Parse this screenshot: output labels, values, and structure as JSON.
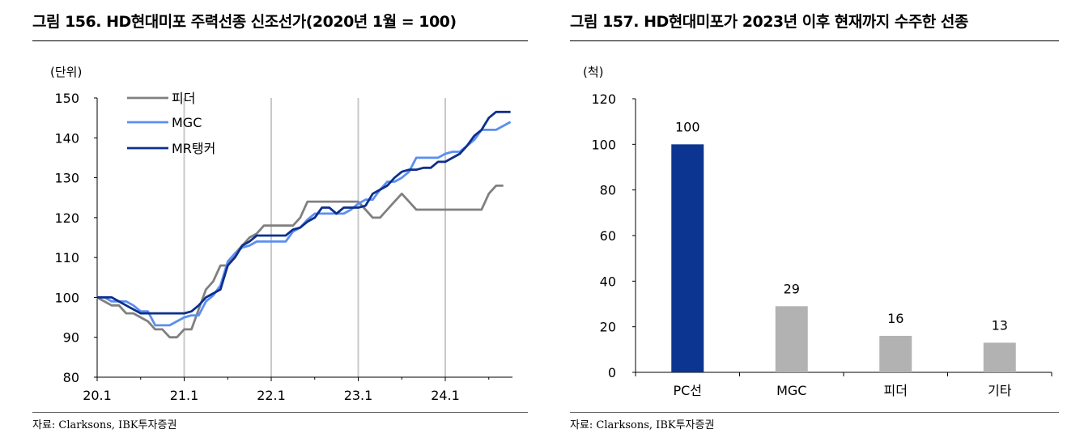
{
  "left": {
    "title": "그림 156. HD현대미포 주력선종 신조선가(2020년 1월 = 100)",
    "unit": "(단위)",
    "source": "자료: Clarksons, IBK투자증권"
  },
  "right": {
    "title": "그림 157. HD현대미포가 2023년 이후 현재까지 수주한 선종",
    "unit": "(척)",
    "source": "자료: Clarksons, IBK투자증권"
  },
  "colors": {
    "feeder": "#808080",
    "mgc": "#5b8ff0",
    "mr_tanker": "#0d2f8c",
    "bar_highlight": "#0b3590",
    "bar_gray": "#b2b2b2",
    "grid_vertical": "#c8c8c8"
  },
  "chart_data": [
    {
      "type": "line",
      "ylim": [
        80,
        150
      ],
      "yticks": [
        80,
        90,
        100,
        110,
        120,
        130,
        140,
        150
      ],
      "xticks": [
        "20.1",
        "21.1",
        "22.1",
        "23.1",
        "24.1"
      ],
      "x_unit": "month index from 20.1",
      "xlim": [
        0,
        57
      ],
      "legend_position": "top-left",
      "vertical_grid": true,
      "series": [
        {
          "name": "피더",
          "color": "#808080",
          "points": [
            [
              0,
              100
            ],
            [
              1,
              99
            ],
            [
              2,
              98
            ],
            [
              3,
              98
            ],
            [
              4,
              96
            ],
            [
              5,
              96
            ],
            [
              6,
              95
            ],
            [
              7,
              94
            ],
            [
              8,
              92
            ],
            [
              9,
              92
            ],
            [
              10,
              90
            ],
            [
              11,
              90
            ],
            [
              12,
              92
            ],
            [
              13,
              92
            ],
            [
              14,
              97
            ],
            [
              15,
              102
            ],
            [
              16,
              104
            ],
            [
              17,
              108
            ],
            [
              18,
              108
            ],
            [
              19,
              111
            ],
            [
              20,
              113
            ],
            [
              21,
              115
            ],
            [
              22,
              116
            ],
            [
              23,
              118
            ],
            [
              24,
              118
            ],
            [
              25,
              118
            ],
            [
              26,
              118
            ],
            [
              27,
              118
            ],
            [
              28,
              120
            ],
            [
              29,
              124
            ],
            [
              30,
              124
            ],
            [
              31,
              124
            ],
            [
              32,
              124
            ],
            [
              33,
              124
            ],
            [
              34,
              124
            ],
            [
              35,
              124
            ],
            [
              36,
              124
            ],
            [
              37,
              122
            ],
            [
              38,
              120
            ],
            [
              39,
              120
            ],
            [
              40,
              122
            ],
            [
              41,
              124
            ],
            [
              42,
              126
            ],
            [
              43,
              124
            ],
            [
              44,
              122
            ],
            [
              45,
              122
            ],
            [
              46,
              122
            ],
            [
              47,
              122
            ],
            [
              48,
              122
            ],
            [
              49,
              122
            ],
            [
              50,
              122
            ],
            [
              51,
              122
            ],
            [
              52,
              122
            ],
            [
              53,
              122
            ],
            [
              54,
              126
            ],
            [
              55,
              128
            ],
            [
              56,
              128
            ]
          ]
        },
        {
          "name": "MGC",
          "color": "#5b8ff0",
          "points": [
            [
              0,
              100
            ],
            [
              1,
              100
            ],
            [
              2,
              99
            ],
            [
              3,
              99
            ],
            [
              4,
              99
            ],
            [
              5,
              98
            ],
            [
              6,
              96.5
            ],
            [
              7,
              96.5
            ],
            [
              8,
              93
            ],
            [
              9,
              93
            ],
            [
              10,
              93
            ],
            [
              11,
              94
            ],
            [
              12,
              95
            ],
            [
              13,
              95.5
            ],
            [
              14,
              95.5
            ],
            [
              15,
              99
            ],
            [
              16,
              100.5
            ],
            [
              17,
              103
            ],
            [
              18,
              109
            ],
            [
              19,
              111
            ],
            [
              20,
              112.5
            ],
            [
              21,
              113
            ],
            [
              22,
              114
            ],
            [
              23,
              114
            ],
            [
              24,
              114
            ],
            [
              25,
              114
            ],
            [
              26,
              114
            ],
            [
              27,
              116.5
            ],
            [
              28,
              117.5
            ],
            [
              29,
              119.5
            ],
            [
              30,
              121
            ],
            [
              31,
              121
            ],
            [
              32,
              121
            ],
            [
              33,
              121
            ],
            [
              34,
              121
            ],
            [
              35,
              122
            ],
            [
              36,
              123.5
            ],
            [
              37,
              124.5
            ],
            [
              38,
              124.5
            ],
            [
              39,
              127
            ],
            [
              40,
              129
            ],
            [
              41,
              129
            ],
            [
              42,
              130
            ],
            [
              43,
              131.5
            ],
            [
              44,
              135
            ],
            [
              45,
              135
            ],
            [
              46,
              135
            ],
            [
              47,
              135
            ],
            [
              48,
              136
            ],
            [
              49,
              136.5
            ],
            [
              50,
              136.5
            ],
            [
              51,
              138
            ],
            [
              52,
              139.5
            ],
            [
              53,
              142
            ],
            [
              54,
              142
            ],
            [
              55,
              142
            ],
            [
              56,
              143
            ],
            [
              57,
              144
            ]
          ]
        },
        {
          "name": "MR탱커",
          "color": "#0d2f8c",
          "points": [
            [
              0,
              100
            ],
            [
              1,
              100
            ],
            [
              2,
              100
            ],
            [
              3,
              99
            ],
            [
              4,
              98
            ],
            [
              5,
              97
            ],
            [
              6,
              96
            ],
            [
              7,
              96
            ],
            [
              8,
              96
            ],
            [
              9,
              96
            ],
            [
              10,
              96
            ],
            [
              11,
              96
            ],
            [
              12,
              96
            ],
            [
              13,
              96.5
            ],
            [
              14,
              98
            ],
            [
              15,
              100
            ],
            [
              16,
              101
            ],
            [
              17,
              102
            ],
            [
              18,
              108
            ],
            [
              19,
              110
            ],
            [
              20,
              113
            ],
            [
              21,
              114
            ],
            [
              22,
              115.5
            ],
            [
              23,
              115.5
            ],
            [
              24,
              115.5
            ],
            [
              25,
              115.5
            ],
            [
              26,
              115.5
            ],
            [
              27,
              117
            ],
            [
              28,
              117.5
            ],
            [
              29,
              119
            ],
            [
              30,
              120
            ],
            [
              31,
              122.5
            ],
            [
              32,
              122.5
            ],
            [
              33,
              121
            ],
            [
              34,
              122.5
            ],
            [
              35,
              122.5
            ],
            [
              36,
              122.5
            ],
            [
              37,
              123
            ],
            [
              38,
              126
            ],
            [
              39,
              127
            ],
            [
              40,
              128
            ],
            [
              41,
              130
            ],
            [
              42,
              131.5
            ],
            [
              43,
              132
            ],
            [
              44,
              132
            ],
            [
              45,
              132.5
            ],
            [
              46,
              132.5
            ],
            [
              47,
              134
            ],
            [
              48,
              134
            ],
            [
              49,
              135
            ],
            [
              50,
              136
            ],
            [
              51,
              138
            ],
            [
              52,
              140.5
            ],
            [
              53,
              142
            ],
            [
              54,
              145
            ],
            [
              55,
              146.5
            ],
            [
              56,
              146.5
            ],
            [
              57,
              146.5
            ]
          ]
        }
      ]
    },
    {
      "type": "bar",
      "ylim": [
        0,
        120
      ],
      "yticks": [
        0,
        20,
        40,
        60,
        80,
        100,
        120
      ],
      "categories": [
        "PC선",
        "MGC",
        "피더",
        "기타"
      ],
      "values": [
        100,
        29,
        16,
        13
      ],
      "data_labels": [
        "100",
        "29",
        "16",
        "13"
      ],
      "bar_colors": [
        "#0b3590",
        "#b2b2b2",
        "#b2b2b2",
        "#b2b2b2"
      ]
    }
  ]
}
